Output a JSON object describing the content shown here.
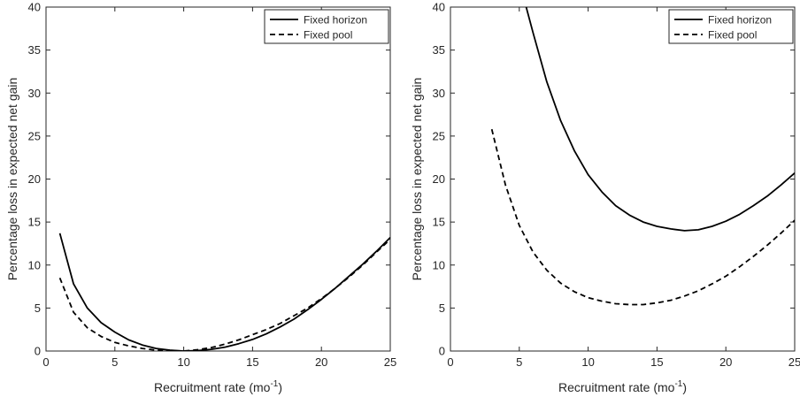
{
  "chart_data": [
    {
      "type": "line",
      "xlabel": "Recruitment rate (mo",
      "xlabel_sup": "-1",
      "xlabel_end": ")",
      "ylabel": "Percentage loss in expected net gain",
      "xlim": [
        0,
        25
      ],
      "ylim": [
        0,
        40
      ],
      "xticks": [
        0,
        5,
        10,
        15,
        20,
        25
      ],
      "yticks": [
        0,
        5,
        10,
        15,
        20,
        25,
        30,
        35,
        40
      ],
      "grid": false,
      "legend_position": "top-right",
      "series": [
        {
          "name": "Fixed horizon",
          "style": "solid",
          "x": [
            1,
            2,
            3,
            4,
            5,
            6,
            7,
            8,
            9,
            10,
            11,
            12,
            13,
            14,
            15,
            16,
            17,
            18,
            19,
            20,
            21,
            22,
            23,
            24,
            25
          ],
          "y": [
            13.7,
            7.8,
            5.0,
            3.3,
            2.2,
            1.3,
            0.7,
            0.3,
            0.1,
            0.0,
            0.05,
            0.2,
            0.45,
            0.85,
            1.35,
            2.0,
            2.8,
            3.7,
            4.8,
            6.0,
            7.3,
            8.7,
            10.1,
            11.6,
            13.2
          ]
        },
        {
          "name": "Fixed pool",
          "style": "dashed",
          "x": [
            1,
            2,
            3,
            4,
            5,
            6,
            7,
            8,
            9,
            10,
            11,
            12,
            13,
            14,
            15,
            16,
            17,
            18,
            19,
            20,
            21,
            22,
            23,
            24,
            25
          ],
          "y": [
            8.5,
            4.5,
            2.7,
            1.7,
            1.0,
            0.6,
            0.3,
            0.1,
            0.03,
            0.0,
            0.15,
            0.4,
            0.8,
            1.3,
            1.9,
            2.5,
            3.2,
            4.1,
            5.0,
            6.1,
            7.3,
            8.6,
            10.0,
            11.5,
            13.0
          ]
        }
      ]
    },
    {
      "type": "line",
      "xlabel": "Recruitment rate (mo",
      "xlabel_sup": "-1",
      "xlabel_end": ")",
      "ylabel": "Percentage loss in expected net gain",
      "xlim": [
        0,
        25
      ],
      "ylim": [
        0,
        40
      ],
      "xticks": [
        0,
        5,
        10,
        15,
        20,
        25
      ],
      "yticks": [
        0,
        5,
        10,
        15,
        20,
        25,
        30,
        35,
        40
      ],
      "grid": false,
      "legend_position": "top-right",
      "series": [
        {
          "name": "Fixed horizon",
          "style": "solid",
          "x": [
            5.5,
            6,
            7,
            8,
            9,
            10,
            11,
            12,
            13,
            14,
            15,
            16,
            17,
            18,
            19,
            20,
            21,
            22,
            23,
            24,
            25
          ],
          "y": [
            40.0,
            37.0,
            31.3,
            26.8,
            23.3,
            20.5,
            18.5,
            16.9,
            15.8,
            15.0,
            14.5,
            14.2,
            14.0,
            14.1,
            14.5,
            15.1,
            15.9,
            16.9,
            18.0,
            19.3,
            20.7
          ]
        },
        {
          "name": "Fixed pool",
          "style": "dashed",
          "x": [
            3,
            4,
            5,
            6,
            7,
            8,
            9,
            10,
            11,
            12,
            13,
            14,
            15,
            16,
            17,
            18,
            19,
            20,
            21,
            22,
            23,
            24,
            25
          ],
          "y": [
            25.8,
            19.3,
            14.6,
            11.5,
            9.4,
            7.9,
            6.9,
            6.2,
            5.8,
            5.5,
            5.4,
            5.4,
            5.6,
            5.9,
            6.4,
            7.0,
            7.8,
            8.7,
            9.8,
            11.0,
            12.3,
            13.7,
            15.2
          ]
        }
      ]
    }
  ]
}
